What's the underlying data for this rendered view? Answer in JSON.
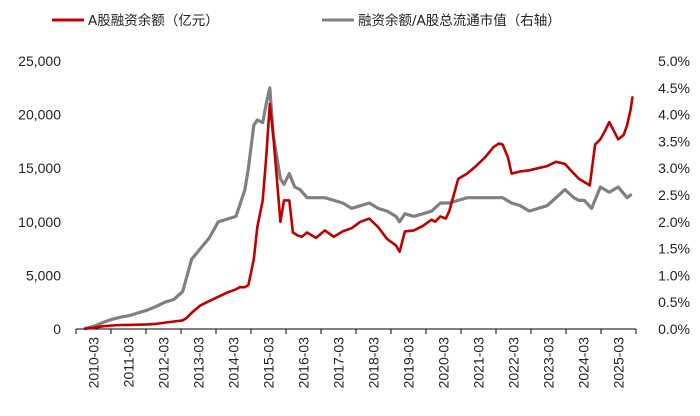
{
  "chart_data": {
    "type": "line",
    "title": "",
    "xlabel": "",
    "ylabel": "",
    "y2label": "",
    "colors": {
      "margin_balance": "#c00000",
      "margin_ratio": "#808080",
      "axis": "#000000"
    },
    "legend": {
      "placement": "top",
      "items": [
        {
          "key": "margin_balance",
          "label": "A股融资余额（亿元）"
        },
        {
          "key": "margin_ratio",
          "label": "融资余额/A股总流通市值（右轴）"
        }
      ]
    },
    "x_categories": [
      "2010-03",
      "2011-03",
      "2012-03",
      "2013-03",
      "2014-03",
      "2015-03",
      "2016-03",
      "2017-03",
      "2018-03",
      "2019-03",
      "2020-03",
      "2021-03",
      "2022-03",
      "2023-03",
      "2024-03",
      "2025-03"
    ],
    "x_range": [
      2010.0,
      2025.75
    ],
    "ylim": [
      0,
      25000
    ],
    "yticks": [
      "0",
      "5,000",
      "10,000",
      "15,000",
      "20,000",
      "25,000"
    ],
    "y2lim": [
      0,
      5.0
    ],
    "y2ticks": [
      "0.0%",
      "0.5%",
      "1.0%",
      "1.5%",
      "2.0%",
      "2.5%",
      "3.0%",
      "3.5%",
      "4.0%",
      "4.5%",
      "5.0%"
    ],
    "series": [
      {
        "key": "margin_balance",
        "axis": "left",
        "x": [
          2010.25,
          2010.5,
          2010.75,
          2011.0,
          2011.25,
          2011.5,
          2011.75,
          2012.0,
          2012.25,
          2012.5,
          2012.75,
          2013.0,
          2013.1,
          2013.25,
          2013.5,
          2013.75,
          2014.0,
          2014.25,
          2014.5,
          2014.6,
          2014.75,
          2014.85,
          2015.0,
          2015.1,
          2015.25,
          2015.35,
          2015.45,
          2015.55,
          2015.65,
          2015.75,
          2015.85,
          2016.0,
          2016.1,
          2016.25,
          2016.35,
          2016.5,
          2016.75,
          2017.0,
          2017.25,
          2017.5,
          2017.75,
          2018.0,
          2018.25,
          2018.5,
          2018.75,
          2019.0,
          2019.1,
          2019.25,
          2019.5,
          2019.75,
          2020.0,
          2020.1,
          2020.25,
          2020.4,
          2020.5,
          2020.75,
          2021.0,
          2021.25,
          2021.5,
          2021.75,
          2021.9,
          2022.0,
          2022.15,
          2022.25,
          2022.5,
          2022.75,
          2023.0,
          2023.25,
          2023.5,
          2023.75,
          2024.0,
          2024.15,
          2024.3,
          2024.45,
          2024.6,
          2024.75,
          2024.85,
          2025.0,
          2025.25,
          2025.4,
          2025.5,
          2025.6,
          2025.65
        ],
        "values": [
          20,
          120,
          250,
          330,
          370,
          380,
          400,
          430,
          480,
          600,
          700,
          800,
          1000,
          1500,
          2200,
          2600,
          3000,
          3400,
          3700,
          3900,
          3900,
          4100,
          6500,
          9500,
          12000,
          16000,
          21000,
          18000,
          14000,
          10000,
          12000,
          12000,
          9000,
          8700,
          8600,
          9000,
          8500,
          9200,
          8600,
          9100,
          9400,
          10000,
          10300,
          9500,
          8400,
          7800,
          7200,
          9100,
          9200,
          9600,
          10200,
          10000,
          10500,
          10300,
          11000,
          14000,
          14500,
          15200,
          16000,
          17000,
          17300,
          17200,
          16000,
          14500,
          14700,
          14800,
          15000,
          15200,
          15600,
          15400,
          14500,
          14000,
          13700,
          13400,
          17200,
          17700,
          18300,
          19300,
          17700,
          18100,
          19000,
          20500,
          21600
        ]
      },
      {
        "key": "margin_ratio",
        "axis": "right",
        "x": [
          2010.25,
          2010.5,
          2010.75,
          2011.0,
          2011.25,
          2011.5,
          2011.75,
          2012.0,
          2012.25,
          2012.5,
          2012.75,
          2013.0,
          2013.25,
          2013.5,
          2013.75,
          2014.0,
          2014.25,
          2014.5,
          2014.75,
          2014.85,
          2015.0,
          2015.1,
          2015.25,
          2015.35,
          2015.45,
          2015.55,
          2015.65,
          2015.75,
          2015.85,
          2016.0,
          2016.15,
          2016.3,
          2016.5,
          2016.75,
          2017.0,
          2017.25,
          2017.5,
          2017.75,
          2018.0,
          2018.25,
          2018.5,
          2018.75,
          2019.0,
          2019.1,
          2019.25,
          2019.5,
          2019.75,
          2020.0,
          2020.25,
          2020.5,
          2020.75,
          2021.0,
          2021.25,
          2021.5,
          2021.75,
          2022.0,
          2022.25,
          2022.5,
          2022.75,
          2023.0,
          2023.25,
          2023.5,
          2023.75,
          2024.0,
          2024.15,
          2024.3,
          2024.5,
          2024.75,
          2025.0,
          2025.25,
          2025.5,
          2025.6
        ],
        "values": [
          0.01,
          0.05,
          0.12,
          0.18,
          0.22,
          0.25,
          0.3,
          0.35,
          0.42,
          0.5,
          0.55,
          0.7,
          1.3,
          1.5,
          1.7,
          2.0,
          2.05,
          2.1,
          2.6,
          3.0,
          3.8,
          3.9,
          3.85,
          4.2,
          4.5,
          3.6,
          3.2,
          2.8,
          2.7,
          2.9,
          2.65,
          2.6,
          2.45,
          2.45,
          2.45,
          2.4,
          2.35,
          2.25,
          2.3,
          2.35,
          2.25,
          2.2,
          2.1,
          2.0,
          2.15,
          2.1,
          2.15,
          2.2,
          2.35,
          2.35,
          2.4,
          2.45,
          2.45,
          2.45,
          2.45,
          2.45,
          2.35,
          2.3,
          2.2,
          2.25,
          2.3,
          2.45,
          2.6,
          2.45,
          2.4,
          2.4,
          2.25,
          2.65,
          2.55,
          2.65,
          2.45,
          2.5
        ]
      }
    ]
  }
}
